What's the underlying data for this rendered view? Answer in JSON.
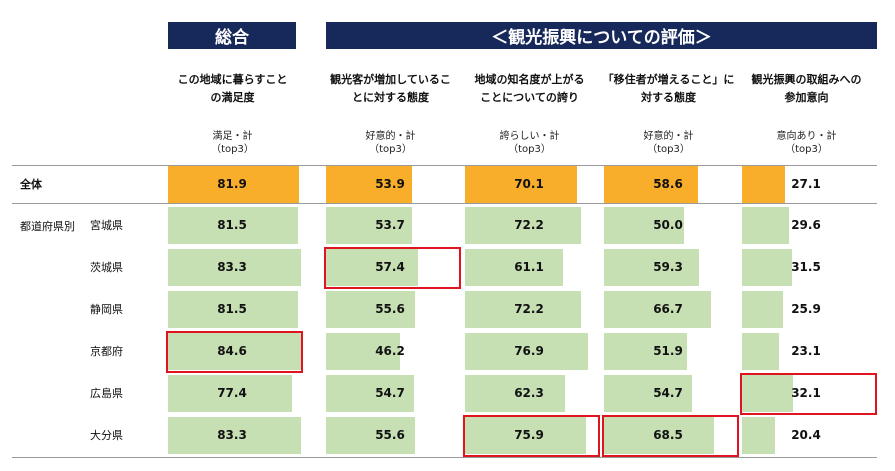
{
  "banner_overall": "総合",
  "banner_tourism": "＜観光振興についての評価＞",
  "columns": [
    {
      "title": [
        "この地域に暮らすこと",
        "の満足度"
      ],
      "metric": [
        "満足・計",
        "（top3）"
      ]
    },
    {
      "title": [
        "観光客が増加しているこ",
        "とに対する態度"
      ],
      "metric": [
        "好意的・計",
        "（top3）"
      ]
    },
    {
      "title": [
        "地域の知名度が上がる",
        "ことについての誇り"
      ],
      "metric": [
        "誇らしい・計",
        "（top3）"
      ]
    },
    {
      "title": [
        "「移住者が増えること」に",
        "対する態度"
      ],
      "metric": [
        "好意的・計",
        "（top3）"
      ]
    },
    {
      "title": [
        "観光振興の取組みへの",
        "参加意向"
      ],
      "metric": [
        "意向あり・計",
        "（top3）"
      ]
    }
  ],
  "group_label": "都道府県別",
  "colors": {
    "total_bar": "#f9ae2b",
    "pref_bar": "#c6e0b4",
    "highlight": "#e0141e",
    "banner": "#17285a"
  },
  "chart_data": {
    "type": "bar",
    "categories": [
      "全体",
      "宮城県",
      "茨城県",
      "静岡県",
      "京都府",
      "広島県",
      "大分県"
    ],
    "series": [
      {
        "name": "この地域に暮らすことの満足度",
        "values": [
          81.9,
          81.5,
          83.3,
          81.5,
          84.6,
          77.4,
          83.3
        ]
      },
      {
        "name": "観光客が増加していることに対する態度",
        "values": [
          53.9,
          53.7,
          57.4,
          55.6,
          46.2,
          54.7,
          55.6
        ]
      },
      {
        "name": "地域の知名度が上がることについての誇り",
        "values": [
          70.1,
          72.2,
          61.1,
          72.2,
          76.9,
          62.3,
          75.9
        ]
      },
      {
        "name": "「移住者が増えること」に対する態度",
        "values": [
          58.6,
          50.0,
          59.3,
          66.7,
          51.9,
          54.7,
          68.5
        ]
      },
      {
        "name": "観光振興の取組みへの参加意向",
        "values": [
          27.1,
          29.6,
          31.5,
          25.9,
          23.1,
          32.1,
          20.4
        ]
      }
    ],
    "ylim": [
      0,
      100
    ],
    "highlights": [
      [
        4,
        0
      ],
      [
        2,
        1
      ],
      [
        6,
        2
      ],
      [
        6,
        3
      ],
      [
        5,
        4
      ]
    ]
  }
}
